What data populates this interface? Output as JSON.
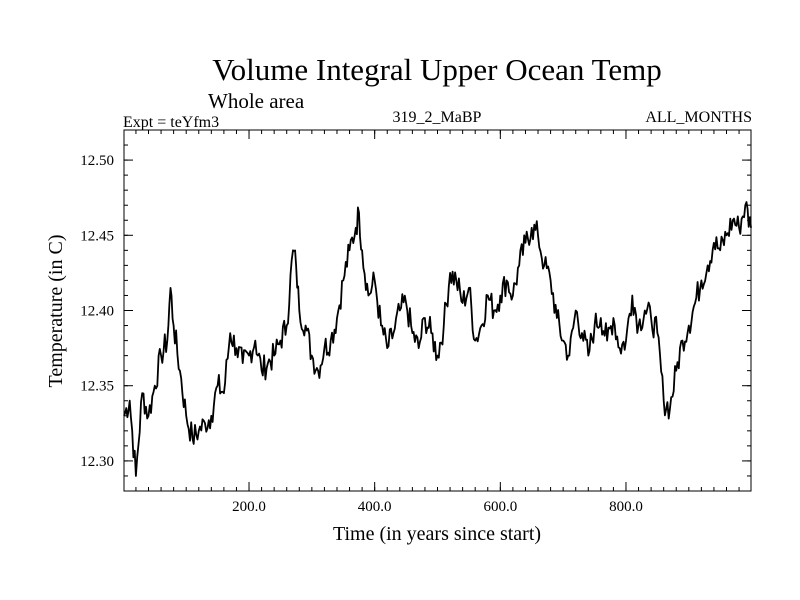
{
  "chart_data": {
    "type": "line",
    "title": "Volume Integral Upper Ocean Temp",
    "subtitle": "Whole area",
    "expt_label": "Expt = teYfm3",
    "run_label": "319_2_MaBP",
    "months_label": "ALL_MONTHS",
    "xlabel": "Time (in years since start)",
    "ylabel": "Temperature (in C)",
    "xlim": [
      1,
      999
    ],
    "ylim": [
      12.28,
      12.52
    ],
    "x_ticks": [
      200,
      400,
      600,
      800
    ],
    "x_tick_labels": [
      "200.0",
      "400.0",
      "600.0",
      "800.0"
    ],
    "y_ticks": [
      12.3,
      12.35,
      12.4,
      12.45,
      12.5
    ],
    "y_tick_labels": [
      "12.30",
      "12.35",
      "12.40",
      "12.45",
      "12.50"
    ],
    "x_minor_step": 20,
    "y_minor_step": 0.01,
    "grid": false,
    "series": [
      {
        "name": "Volume integral upper ocean temperature",
        "color": "#000000",
        "x": [
          1,
          10,
          20,
          30,
          40,
          50,
          60,
          70,
          75,
          80,
          90,
          100,
          110,
          120,
          130,
          140,
          150,
          160,
          170,
          180,
          190,
          200,
          210,
          220,
          230,
          240,
          250,
          260,
          270,
          275,
          280,
          290,
          300,
          310,
          320,
          330,
          340,
          350,
          360,
          370,
          375,
          380,
          390,
          400,
          410,
          420,
          430,
          440,
          450,
          460,
          470,
          480,
          490,
          500,
          510,
          520,
          530,
          540,
          550,
          560,
          570,
          580,
          590,
          600,
          610,
          620,
          630,
          640,
          650,
          660,
          670,
          680,
          690,
          700,
          710,
          720,
          730,
          740,
          750,
          760,
          770,
          780,
          790,
          800,
          810,
          820,
          830,
          840,
          850,
          860,
          870,
          880,
          890,
          900,
          910,
          920,
          930,
          940,
          950,
          960,
          970,
          980,
          990,
          999
        ],
        "y": [
          12.33,
          12.34,
          12.29,
          12.345,
          12.33,
          12.35,
          12.37,
          12.38,
          12.415,
          12.39,
          12.36,
          12.33,
          12.315,
          12.32,
          12.325,
          12.33,
          12.35,
          12.345,
          12.385,
          12.375,
          12.365,
          12.37,
          12.38,
          12.36,
          12.365,
          12.37,
          12.38,
          12.39,
          12.44,
          12.43,
          12.4,
          12.39,
          12.37,
          12.36,
          12.375,
          12.38,
          12.395,
          12.42,
          12.44,
          12.455,
          12.465,
          12.44,
          12.41,
          12.42,
          12.39,
          12.375,
          12.385,
          12.4,
          12.405,
          12.385,
          12.375,
          12.395,
          12.385,
          12.37,
          12.39,
          12.425,
          12.42,
          12.405,
          12.415,
          12.38,
          12.39,
          12.41,
          12.4,
          12.41,
          12.42,
          12.41,
          12.43,
          12.445,
          12.455,
          12.45,
          12.43,
          12.42,
          12.395,
          12.38,
          12.37,
          12.4,
          12.385,
          12.37,
          12.39,
          12.395,
          12.38,
          12.395,
          12.375,
          12.38,
          12.41,
          12.39,
          12.4,
          12.395,
          12.385,
          12.34,
          12.335,
          12.36,
          12.38,
          12.39,
          12.405,
          12.42,
          12.43,
          12.445,
          12.44,
          12.45,
          12.46,
          12.455,
          12.47,
          12.455
        ]
      }
    ]
  }
}
